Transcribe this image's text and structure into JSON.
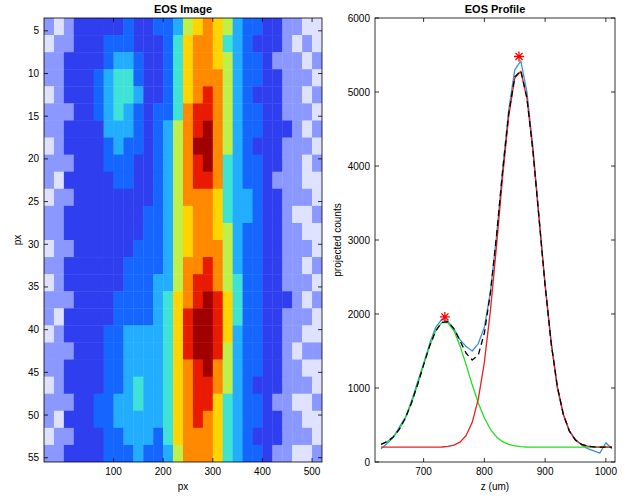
{
  "chart_data": [
    {
      "type": "heatmap",
      "title": "EOS Image",
      "x_label": "px",
      "y_label": "px",
      "xlim": [
        -40,
        520
      ],
      "ylim": [
        55.5,
        3.5
      ],
      "xticks": [
        100,
        200,
        300,
        400,
        500
      ],
      "yticks": [
        5,
        10,
        15,
        20,
        25,
        30,
        35,
        40,
        45,
        50,
        55
      ],
      "zlim": [
        0,
        10
      ],
      "z": [
        [
          1,
          0,
          1,
          2,
          2,
          2,
          2,
          2,
          3,
          2,
          2,
          3,
          3,
          4,
          6,
          7,
          8,
          7,
          6,
          4,
          3,
          3,
          2,
          2,
          1,
          1,
          0,
          0
        ],
        [
          0,
          1,
          1,
          2,
          2,
          2,
          3,
          3,
          3,
          2,
          2,
          2,
          3,
          5,
          7,
          8,
          8,
          7,
          5,
          4,
          3,
          2,
          2,
          2,
          1,
          0,
          1,
          0
        ],
        [
          1,
          1,
          2,
          2,
          2,
          2,
          3,
          4,
          4,
          3,
          2,
          2,
          3,
          5,
          7,
          8,
          8,
          7,
          6,
          4,
          3,
          3,
          2,
          1,
          1,
          1,
          0,
          1
        ],
        [
          1,
          1,
          2,
          2,
          2,
          3,
          4,
          5,
          5,
          3,
          2,
          2,
          3,
          5,
          7,
          8,
          8,
          8,
          6,
          4,
          3,
          3,
          2,
          2,
          1,
          1,
          1,
          0
        ],
        [
          0,
          1,
          2,
          2,
          2,
          3,
          4,
          5,
          5,
          4,
          2,
          2,
          3,
          5,
          7,
          8,
          9,
          8,
          6,
          4,
          3,
          2,
          2,
          2,
          1,
          1,
          0,
          1
        ],
        [
          1,
          1,
          1,
          2,
          2,
          3,
          4,
          5,
          4,
          3,
          2,
          3,
          3,
          5,
          8,
          9,
          9,
          8,
          6,
          4,
          3,
          3,
          2,
          2,
          1,
          1,
          1,
          0
        ],
        [
          1,
          1,
          2,
          2,
          2,
          2,
          4,
          4,
          4,
          3,
          2,
          3,
          4,
          6,
          8,
          9,
          10,
          8,
          6,
          4,
          3,
          3,
          2,
          2,
          2,
          1,
          0,
          1
        ],
        [
          0,
          1,
          2,
          2,
          2,
          2,
          3,
          4,
          3,
          3,
          2,
          3,
          4,
          6,
          8,
          10,
          10,
          8,
          6,
          4,
          3,
          2,
          2,
          2,
          1,
          1,
          1,
          0
        ],
        [
          1,
          1,
          1,
          2,
          2,
          2,
          3,
          3,
          3,
          2,
          2,
          3,
          4,
          6,
          8,
          9,
          10,
          8,
          5,
          4,
          3,
          3,
          2,
          2,
          1,
          1,
          0,
          1
        ],
        [
          1,
          0,
          2,
          2,
          2,
          2,
          2,
          3,
          3,
          2,
          2,
          3,
          4,
          6,
          8,
          9,
          9,
          8,
          5,
          4,
          3,
          3,
          2,
          1,
          1,
          1,
          0,
          0
        ],
        [
          0,
          1,
          1,
          2,
          2,
          2,
          2,
          2,
          2,
          2,
          2,
          3,
          4,
          6,
          8,
          8,
          8,
          7,
          5,
          4,
          4,
          3,
          2,
          2,
          1,
          1,
          1,
          0
        ],
        [
          1,
          1,
          2,
          2,
          2,
          2,
          2,
          2,
          2,
          2,
          3,
          3,
          4,
          6,
          7,
          8,
          8,
          7,
          5,
          4,
          4,
          3,
          2,
          2,
          1,
          0,
          0,
          1
        ],
        [
          1,
          1,
          2,
          2,
          2,
          2,
          2,
          2,
          2,
          2,
          3,
          3,
          4,
          6,
          7,
          8,
          8,
          7,
          6,
          4,
          3,
          3,
          2,
          2,
          1,
          1,
          0,
          0
        ],
        [
          0,
          1,
          1,
          2,
          2,
          2,
          2,
          2,
          2,
          3,
          3,
          3,
          4,
          6,
          7,
          8,
          8,
          8,
          6,
          4,
          3,
          3,
          2,
          2,
          1,
          1,
          1,
          0
        ],
        [
          1,
          1,
          2,
          2,
          2,
          2,
          2,
          2,
          3,
          3,
          3,
          3,
          4,
          6,
          8,
          8,
          9,
          8,
          6,
          4,
          3,
          3,
          2,
          2,
          1,
          1,
          0,
          1
        ],
        [
          0,
          1,
          2,
          2,
          2,
          2,
          2,
          2,
          3,
          3,
          3,
          4,
          4,
          6,
          8,
          9,
          9,
          8,
          6,
          5,
          3,
          3,
          2,
          2,
          1,
          1,
          1,
          0
        ],
        [
          1,
          1,
          1,
          2,
          2,
          2,
          2,
          3,
          3,
          3,
          3,
          4,
          5,
          7,
          8,
          9,
          10,
          9,
          7,
          5,
          3,
          3,
          2,
          2,
          2,
          1,
          0,
          1
        ],
        [
          1,
          0,
          2,
          2,
          2,
          2,
          2,
          3,
          3,
          3,
          3,
          4,
          5,
          7,
          9,
          10,
          10,
          9,
          7,
          5,
          3,
          3,
          2,
          2,
          1,
          1,
          1,
          0
        ],
        [
          0,
          1,
          2,
          2,
          2,
          2,
          3,
          3,
          4,
          4,
          4,
          4,
          5,
          7,
          9,
          10,
          10,
          9,
          7,
          4,
          3,
          3,
          2,
          2,
          1,
          1,
          0,
          0
        ],
        [
          1,
          1,
          1,
          2,
          2,
          2,
          3,
          3,
          4,
          4,
          4,
          4,
          5,
          7,
          9,
          10,
          10,
          9,
          6,
          4,
          3,
          3,
          2,
          2,
          1,
          0,
          1,
          1
        ],
        [
          1,
          1,
          2,
          2,
          2,
          2,
          3,
          3,
          4,
          4,
          4,
          4,
          5,
          7,
          8,
          9,
          10,
          8,
          6,
          4,
          3,
          3,
          2,
          2,
          1,
          1,
          0,
          0
        ],
        [
          0,
          1,
          2,
          2,
          2,
          2,
          3,
          3,
          4,
          5,
          4,
          4,
          5,
          7,
          8,
          9,
          9,
          8,
          6,
          4,
          3,
          2,
          2,
          2,
          1,
          1,
          1,
          0
        ],
        [
          1,
          1,
          1,
          2,
          2,
          3,
          3,
          4,
          4,
          5,
          4,
          4,
          5,
          7,
          8,
          9,
          9,
          7,
          5,
          4,
          3,
          3,
          2,
          1,
          1,
          0,
          0,
          1
        ],
        [
          1,
          0,
          2,
          2,
          2,
          3,
          3,
          4,
          4,
          4,
          4,
          4,
          5,
          7,
          8,
          9,
          8,
          7,
          5,
          4,
          3,
          3,
          2,
          2,
          1,
          1,
          0,
          0
        ],
        [
          0,
          1,
          1,
          2,
          2,
          2,
          3,
          3,
          4,
          4,
          4,
          3,
          5,
          7,
          8,
          8,
          8,
          7,
          5,
          4,
          3,
          2,
          2,
          2,
          1,
          1,
          1,
          0
        ],
        [
          1,
          1,
          2,
          2,
          2,
          2,
          3,
          3,
          3,
          4,
          3,
          3,
          4,
          6,
          8,
          8,
          8,
          7,
          5,
          4,
          3,
          3,
          2,
          1,
          1,
          0,
          0,
          1
        ]
      ]
    },
    {
      "type": "line",
      "title": "EOS Profile",
      "x_label": "z (um)",
      "y_label": "projected counts",
      "xlim": [
        620,
        1015
      ],
      "ylim": [
        0,
        6000
      ],
      "xticks": [
        700,
        800,
        900,
        1000
      ],
      "yticks": [
        0,
        1000,
        2000,
        3000,
        4000,
        5000,
        6000
      ],
      "x": [
        630,
        640,
        650,
        660,
        670,
        680,
        690,
        700,
        710,
        720,
        730,
        740,
        750,
        760,
        770,
        780,
        790,
        800,
        810,
        820,
        830,
        840,
        850,
        860,
        870,
        880,
        890,
        900,
        910,
        920,
        930,
        940,
        950,
        960,
        970,
        980,
        990,
        1000,
        1010
      ],
      "series": [
        {
          "color": "#3d8fd6",
          "line_style": "solid",
          "values": [
            180,
            250,
            330,
            470,
            600,
            820,
            1080,
            1330,
            1600,
            1820,
            1930,
            1900,
            1800,
            1650,
            1560,
            1500,
            1600,
            1820,
            2300,
            3050,
            3950,
            4750,
            5300,
            5420,
            5000,
            4250,
            3300,
            2400,
            1620,
            1000,
            640,
            420,
            300,
            230,
            180,
            150,
            120,
            260,
            180
          ]
        },
        {
          "color": "#22dd22",
          "line_style": "solid",
          "values": [
            237,
            275,
            339,
            442,
            594,
            797,
            1043,
            1312,
            1569,
            1773,
            1885,
            1885,
            1773,
            1569,
            1312,
            1043,
            797,
            594,
            442,
            339,
            275,
            237,
            217,
            208,
            203,
            201,
            200,
            200,
            200,
            200,
            200,
            200,
            200,
            200,
            200,
            200,
            200,
            200,
            200
          ]
        },
        {
          "color": "#e8201c",
          "line_style": "solid",
          "values": [
            200,
            200,
            200,
            200,
            200,
            200,
            200,
            200,
            200,
            201,
            203,
            210,
            227,
            268,
            358,
            536,
            849,
            1348,
            2049,
            2920,
            3850,
            4666,
            5187,
            5280,
            4918,
            4200,
            3293,
            2381,
            1604,
            1025,
            642,
            416,
            296,
            239,
            214,
            205,
            202,
            201,
            200
          ]
        },
        {
          "color": "#000000",
          "line_style": "dashed",
          "values": [
            237,
            275,
            339,
            442,
            594,
            797,
            1043,
            1312,
            1569,
            1774,
            1888,
            1895,
            1800,
            1637,
            1470,
            1379,
            1446,
            1742,
            2291,
            3059,
            3925,
            4703,
            5204,
            5288,
            4921,
            4201,
            3293,
            2381,
            1604,
            1025,
            642,
            416,
            296,
            239,
            214,
            205,
            202,
            201,
            200
          ]
        },
        {
          "type": "scatter",
          "marker": "asterisk",
          "color": "#ff0000",
          "x": [
            735,
            857
          ],
          "values": [
            1960,
            5480
          ]
        }
      ]
    }
  ]
}
